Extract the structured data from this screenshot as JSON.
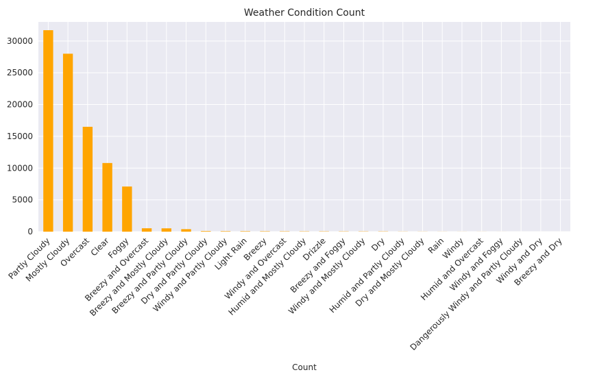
{
  "chart_data": {
    "type": "bar",
    "title": "Weather Condition Count",
    "xlabel": "Count",
    "ylabel": "",
    "ylim": [
      0,
      33000
    ],
    "yticks": [
      0,
      5000,
      10000,
      15000,
      20000,
      25000,
      30000
    ],
    "grid": true,
    "bar_color": "#FFA500",
    "background_color": "#EAEAF2",
    "grid_color": "#FFFFFF",
    "categories": [
      "Partly Cloudy",
      "Mostly Cloudy",
      "Overcast",
      "Clear",
      "Foggy",
      "Breezy and Overcast",
      "Breezy and Mostly Cloudy",
      "Breezy and Partly Cloudy",
      "Dry and Partly Cloudy",
      "Windy and Partly Cloudy",
      "Light Rain",
      "Breezy",
      "Windy and Overcast",
      "Humid and Mostly Cloudy",
      "Drizzle",
      "Breezy and Foggy",
      "Windy and Mostly Cloudy",
      "Dry",
      "Humid and Partly Cloudy",
      "Dry and Mostly Cloudy",
      "Rain",
      "Windy",
      "Humid and Overcast",
      "Windy and Foggy",
      "Dangerously Windy and Partly Cloudy",
      "Windy and Dry",
      "Breezy and Dry"
    ],
    "values": [
      31700,
      28000,
      16500,
      10800,
      7100,
      530,
      520,
      390,
      86,
      67,
      63,
      54,
      45,
      40,
      39,
      35,
      35,
      34,
      17,
      14,
      10,
      8,
      7,
      4,
      1,
      1,
      1
    ]
  }
}
